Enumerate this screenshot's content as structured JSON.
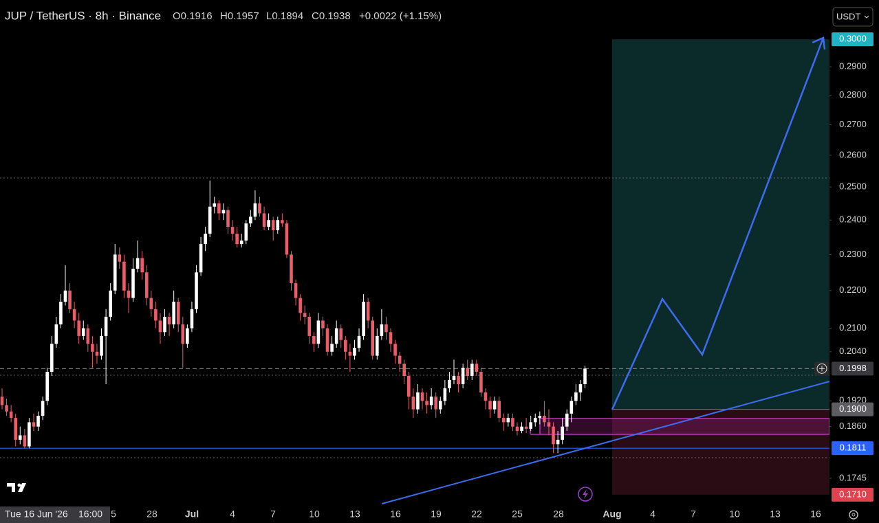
{
  "header": {
    "symbol": "JUP / TetherUS · 8h · Binance",
    "ohlc": [
      "O0.1916",
      "H0.1957",
      "L0.1894",
      "C0.1938"
    ],
    "change": "+0.0022 (+1.15%)",
    "currency": "USDT"
  },
  "crosshair": {
    "date": "Tue 16 Jun '26",
    "time": "16:00"
  },
  "chart_data": {
    "type": "candlestick",
    "log_scale": true,
    "up_color": "#ffffff",
    "down_color": "#ea5d6b",
    "ylim": [
      0.1681,
      0.3149
    ],
    "yticks": [
      {
        "value": 0.29,
        "label": "0.2900"
      },
      {
        "value": 0.28,
        "label": "0.2800"
      },
      {
        "value": 0.27,
        "label": "0.2700"
      },
      {
        "value": 0.26,
        "label": "0.2600"
      },
      {
        "value": 0.25,
        "label": "0.2500"
      },
      {
        "value": 0.24,
        "label": "0.2400"
      },
      {
        "value": 0.23,
        "label": "0.2300"
      },
      {
        "value": 0.22,
        "label": "0.2200"
      },
      {
        "value": 0.21,
        "label": "0.2100"
      },
      {
        "value": 0.204,
        "label": "0.2040"
      },
      {
        "value": 0.192,
        "label": "0.1920"
      },
      {
        "value": 0.186,
        "label": "0.1860"
      },
      {
        "value": 0.1745,
        "label": "0.1745"
      }
    ],
    "price_labels": [
      {
        "value": 0.3,
        "label": "0.3000",
        "color": "#1fb3c4"
      },
      {
        "value": 0.1998,
        "label": "0.1998",
        "color": "#3a3a3e"
      },
      {
        "value": 0.19,
        "label": "0.1900",
        "color": "#5d5d62"
      },
      {
        "value": 0.1811,
        "label": "0.1811",
        "color": "#2962ff"
      },
      {
        "value": 0.171,
        "label": "0.1710",
        "color": "#e0424f"
      }
    ],
    "x_labels": [
      "5",
      "28",
      "Jul",
      "4",
      "7",
      "10",
      "13",
      "16",
      "19",
      "22",
      "25",
      "28",
      "Aug",
      "4",
      "7",
      "10",
      "13",
      "16"
    ],
    "candles": [
      [
        0.193,
        0.195,
        0.19,
        0.191
      ],
      [
        0.191,
        0.1925,
        0.1885,
        0.1895
      ],
      [
        0.1895,
        0.191,
        0.187,
        0.188
      ],
      [
        0.188,
        0.189,
        0.1815,
        0.183
      ],
      [
        0.183,
        0.186,
        0.182,
        0.184
      ],
      [
        0.184,
        0.1855,
        0.1811,
        0.1815
      ],
      [
        0.1815,
        0.188,
        0.1811,
        0.187
      ],
      [
        0.187,
        0.189,
        0.185,
        0.186
      ],
      [
        0.186,
        0.1895,
        0.185,
        0.1885
      ],
      [
        0.1885,
        0.193,
        0.1875,
        0.192
      ],
      [
        0.192,
        0.2,
        0.191,
        0.199
      ],
      [
        0.199,
        0.208,
        0.198,
        0.206
      ],
      [
        0.206,
        0.213,
        0.205,
        0.211
      ],
      [
        0.211,
        0.219,
        0.21,
        0.217
      ],
      [
        0.217,
        0.227,
        0.216,
        0.22
      ],
      [
        0.22,
        0.222,
        0.214,
        0.215
      ],
      [
        0.215,
        0.217,
        0.21,
        0.212
      ],
      [
        0.212,
        0.214,
        0.206,
        0.208
      ],
      [
        0.208,
        0.212,
        0.207,
        0.21
      ],
      [
        0.21,
        0.211,
        0.204,
        0.206
      ],
      [
        0.206,
        0.208,
        0.2,
        0.204
      ],
      [
        0.204,
        0.206,
        0.201,
        0.203
      ],
      [
        0.203,
        0.21,
        0.202,
        0.208
      ],
      [
        0.208,
        0.215,
        0.196,
        0.213
      ],
      [
        0.213,
        0.222,
        0.212,
        0.22
      ],
      [
        0.22,
        0.233,
        0.219,
        0.23
      ],
      [
        0.23,
        0.232,
        0.226,
        0.228
      ],
      [
        0.228,
        0.23,
        0.218,
        0.22
      ],
      [
        0.22,
        0.222,
        0.214,
        0.218
      ],
      [
        0.218,
        0.229,
        0.217,
        0.226
      ],
      [
        0.226,
        0.234,
        0.225,
        0.229
      ],
      [
        0.229,
        0.231,
        0.223,
        0.225
      ],
      [
        0.225,
        0.227,
        0.216,
        0.218
      ],
      [
        0.218,
        0.22,
        0.213,
        0.215
      ],
      [
        0.215,
        0.217,
        0.21,
        0.212
      ],
      [
        0.212,
        0.214,
        0.206,
        0.209
      ],
      [
        0.209,
        0.215,
        0.208,
        0.213
      ],
      [
        0.213,
        0.214,
        0.208,
        0.211
      ],
      [
        0.211,
        0.22,
        0.21,
        0.217
      ],
      [
        0.217,
        0.218,
        0.209,
        0.211
      ],
      [
        0.211,
        0.213,
        0.2,
        0.206
      ],
      [
        0.206,
        0.211,
        0.205,
        0.21
      ],
      [
        0.21,
        0.217,
        0.209,
        0.215
      ],
      [
        0.215,
        0.227,
        0.214,
        0.225
      ],
      [
        0.225,
        0.235,
        0.224,
        0.233
      ],
      [
        0.233,
        0.238,
        0.231,
        0.236
      ],
      [
        0.236,
        0.252,
        0.235,
        0.244
      ],
      [
        0.244,
        0.247,
        0.242,
        0.245
      ],
      [
        0.245,
        0.246,
        0.24,
        0.242
      ],
      [
        0.242,
        0.245,
        0.24,
        0.243
      ],
      [
        0.243,
        0.244,
        0.236,
        0.238
      ],
      [
        0.238,
        0.24,
        0.234,
        0.236
      ],
      [
        0.236,
        0.238,
        0.232,
        0.233
      ],
      [
        0.233,
        0.236,
        0.232,
        0.234
      ],
      [
        0.234,
        0.24,
        0.233,
        0.239
      ],
      [
        0.239,
        0.243,
        0.238,
        0.241
      ],
      [
        0.241,
        0.249,
        0.24,
        0.245
      ],
      [
        0.245,
        0.247,
        0.241,
        0.242
      ],
      [
        0.242,
        0.244,
        0.237,
        0.238
      ],
      [
        0.238,
        0.242,
        0.237,
        0.24
      ],
      [
        0.24,
        0.241,
        0.234,
        0.237
      ],
      [
        0.237,
        0.241,
        0.236,
        0.24
      ],
      [
        0.24,
        0.242,
        0.238,
        0.239
      ],
      [
        0.239,
        0.24,
        0.229,
        0.23
      ],
      [
        0.23,
        0.231,
        0.22,
        0.222
      ],
      [
        0.222,
        0.223,
        0.216,
        0.218
      ],
      [
        0.218,
        0.219,
        0.212,
        0.214
      ],
      [
        0.214,
        0.216,
        0.211,
        0.213
      ],
      [
        0.213,
        0.214,
        0.206,
        0.208
      ],
      [
        0.208,
        0.209,
        0.204,
        0.206
      ],
      [
        0.206,
        0.214,
        0.205,
        0.212
      ],
      [
        0.212,
        0.213,
        0.208,
        0.21
      ],
      [
        0.21,
        0.211,
        0.203,
        0.204
      ],
      [
        0.204,
        0.208,
        0.203,
        0.206
      ],
      [
        0.206,
        0.212,
        0.205,
        0.21
      ],
      [
        0.21,
        0.211,
        0.205,
        0.207
      ],
      [
        0.207,
        0.208,
        0.202,
        0.204
      ],
      [
        0.204,
        0.206,
        0.199,
        0.203
      ],
      [
        0.203,
        0.207,
        0.202,
        0.205
      ],
      [
        0.205,
        0.21,
        0.204,
        0.208
      ],
      [
        0.208,
        0.219,
        0.207,
        0.217
      ],
      [
        0.217,
        0.218,
        0.21,
        0.212
      ],
      [
        0.212,
        0.213,
        0.202,
        0.203
      ],
      [
        0.203,
        0.21,
        0.202,
        0.208
      ],
      [
        0.208,
        0.215,
        0.207,
        0.211
      ],
      [
        0.211,
        0.213,
        0.207,
        0.209
      ],
      [
        0.209,
        0.21,
        0.204,
        0.206
      ],
      [
        0.206,
        0.207,
        0.201,
        0.203
      ],
      [
        0.203,
        0.204,
        0.199,
        0.201
      ],
      [
        0.201,
        0.202,
        0.196,
        0.198
      ],
      [
        0.198,
        0.199,
        0.19,
        0.193
      ],
      [
        0.193,
        0.195,
        0.188,
        0.19
      ],
      [
        0.19,
        0.196,
        0.189,
        0.194
      ],
      [
        0.194,
        0.195,
        0.19,
        0.192
      ],
      [
        0.192,
        0.194,
        0.189,
        0.191
      ],
      [
        0.191,
        0.195,
        0.19,
        0.193
      ],
      [
        0.193,
        0.194,
        0.188,
        0.19
      ],
      [
        0.19,
        0.193,
        0.189,
        0.192
      ],
      [
        0.192,
        0.197,
        0.191,
        0.195
      ],
      [
        0.195,
        0.199,
        0.194,
        0.197
      ],
      [
        0.197,
        0.202,
        0.196,
        0.198
      ],
      [
        0.198,
        0.199,
        0.194,
        0.196
      ],
      [
        0.196,
        0.201,
        0.195,
        0.2
      ],
      [
        0.2,
        0.202,
        0.197,
        0.198
      ],
      [
        0.198,
        0.202,
        0.197,
        0.201
      ],
      [
        0.201,
        0.202,
        0.198,
        0.199
      ],
      [
        0.199,
        0.2,
        0.193,
        0.194
      ],
      [
        0.194,
        0.195,
        0.19,
        0.192
      ],
      [
        0.192,
        0.193,
        0.188,
        0.19
      ],
      [
        0.19,
        0.193,
        0.189,
        0.192
      ],
      [
        0.192,
        0.193,
        0.187,
        0.188
      ],
      [
        0.188,
        0.189,
        0.185,
        0.187
      ],
      [
        0.187,
        0.189,
        0.186,
        0.188
      ],
      [
        0.188,
        0.189,
        0.185,
        0.186
      ],
      [
        0.186,
        0.187,
        0.184,
        0.185
      ],
      [
        0.185,
        0.187,
        0.1845,
        0.186
      ],
      [
        0.186,
        0.188,
        0.1845,
        0.1855
      ],
      [
        0.1855,
        0.1885,
        0.185,
        0.187
      ],
      [
        0.187,
        0.189,
        0.186,
        0.188
      ],
      [
        0.188,
        0.1895,
        0.1865,
        0.1885
      ],
      [
        0.1885,
        0.192,
        0.186,
        0.187
      ],
      [
        0.187,
        0.19,
        0.184,
        0.186
      ],
      [
        0.186,
        0.187,
        0.18,
        0.182
      ],
      [
        0.182,
        0.185,
        0.18,
        0.183
      ],
      [
        0.183,
        0.188,
        0.182,
        0.186
      ],
      [
        0.186,
        0.19,
        0.185,
        0.189
      ],
      [
        0.189,
        0.193,
        0.187,
        0.192
      ],
      [
        0.192,
        0.196,
        0.191,
        0.194
      ],
      [
        0.194,
        0.197,
        0.192,
        0.196
      ],
      [
        0.196,
        0.2005,
        0.195,
        0.1998
      ]
    ]
  }
}
